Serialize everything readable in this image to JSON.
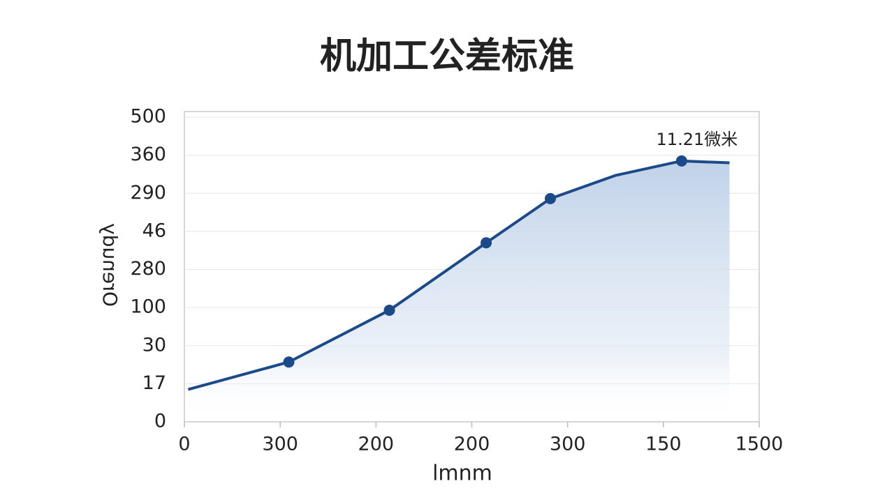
{
  "chart_data": {
    "type": "line",
    "title": "机加工公差标准",
    "x_label": "lmnm",
    "y_label": "Orenudy",
    "x": [
      0.04,
      1.09,
      2.14,
      3.15,
      3.82,
      4.5,
      5.19,
      5.69
    ],
    "series": [
      {
        "color": "#1a4a8a",
        "values": [
          0.85,
          1.57,
          2.93,
          4.7,
          5.86,
          6.47,
          6.85,
          6.8
        ],
        "markers": [
          false,
          true,
          true,
          true,
          true,
          false,
          true,
          false
        ]
      }
    ],
    "annotation": {
      "text": "11.21微米",
      "point": 6
    },
    "xlim": [
      0,
      6
    ],
    "xticks": [
      0,
      {
        "value": 1,
        "label": "300"
      },
      {
        "value": 2,
        "label": "200"
      },
      {
        "value": 3,
        "label": "200"
      },
      {
        "value": 4,
        "label": "300"
      },
      {
        "value": 5,
        "label": "150"
      },
      {
        "value": 6,
        "label": "1500"
      }
    ],
    "ylim": [
      0,
      8
    ],
    "yticks": [
      0,
      {
        "value": 1,
        "label": "17"
      },
      {
        "value": 2,
        "label": "30"
      },
      {
        "value": 3,
        "label": "100"
      },
      {
        "value": 4,
        "label": "280"
      },
      {
        "value": 5,
        "label": "46"
      },
      {
        "value": 6,
        "label": "290"
      },
      {
        "value": 7,
        "label": "360"
      },
      {
        "value": 8,
        "label": "500"
      }
    ],
    "grid": true
  }
}
